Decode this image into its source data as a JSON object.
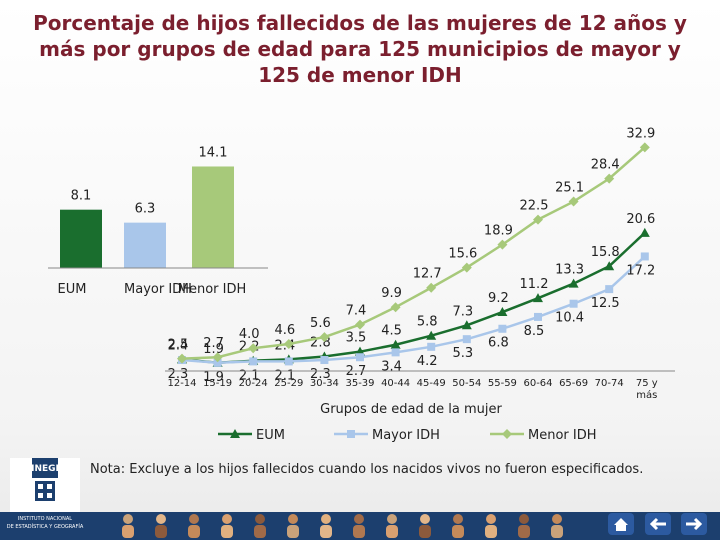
{
  "title": "Porcentaje de hijos fallecidos de las mujeres de 12 años y más por grupos de edad para 125 municipios de mayor y 125 de menor IDH",
  "note": "Nota: Excluye a los hijos fallecidos cuando los nacidos vivos no fueron especificados.",
  "logo": {
    "name": "INEGI",
    "line1": "INSTITUTO NACIONAL",
    "line2": "DE ESTADÍSTICA Y GEOGRAFÍA"
  },
  "colors": {
    "eum": "#1a6e2e",
    "mayor": "#a9c6ea",
    "menor": "#a7c97a",
    "title": "#7b1f2e"
  },
  "chart_data": [
    {
      "type": "bar",
      "categories": [
        "EUM",
        "Mayor IDH",
        "Menor IDH"
      ],
      "values": [
        8.1,
        6.3,
        14.1
      ],
      "colors": [
        "#1a6e2e",
        "#a9c6ea",
        "#a7c97a"
      ]
    },
    {
      "type": "line",
      "xlabel": "Grupos de edad de la mujer",
      "categories": [
        "12-14",
        "15-19",
        "20-24",
        "25-29",
        "30-34",
        "35-39",
        "40-44",
        "45-49",
        "50-54",
        "55-59",
        "60-64",
        "65-69",
        "70-74",
        "75 y más"
      ],
      "series": [
        {
          "name": "EUM",
          "color": "#1a6e2e",
          "values": [
            2.4,
            1.9,
            2.2,
            2.4,
            2.8,
            3.5,
            4.5,
            5.8,
            7.3,
            9.2,
            11.2,
            13.3,
            15.8,
            20.6
          ]
        },
        {
          "name": "Mayor IDH",
          "color": "#a9c6ea",
          "values": [
            2.3,
            1.9,
            2.1,
            2.1,
            2.3,
            2.7,
            3.4,
            4.2,
            5.3,
            6.8,
            8.5,
            10.4,
            12.5,
            17.2
          ]
        },
        {
          "name": "Menor IDH",
          "color": "#a7c97a",
          "values": [
            2.5,
            2.7,
            4.0,
            4.6,
            5.6,
            7.4,
            9.9,
            12.7,
            15.6,
            18.9,
            22.5,
            25.1,
            28.4,
            32.9
          ]
        }
      ],
      "legend_position": "bottom"
    }
  ]
}
